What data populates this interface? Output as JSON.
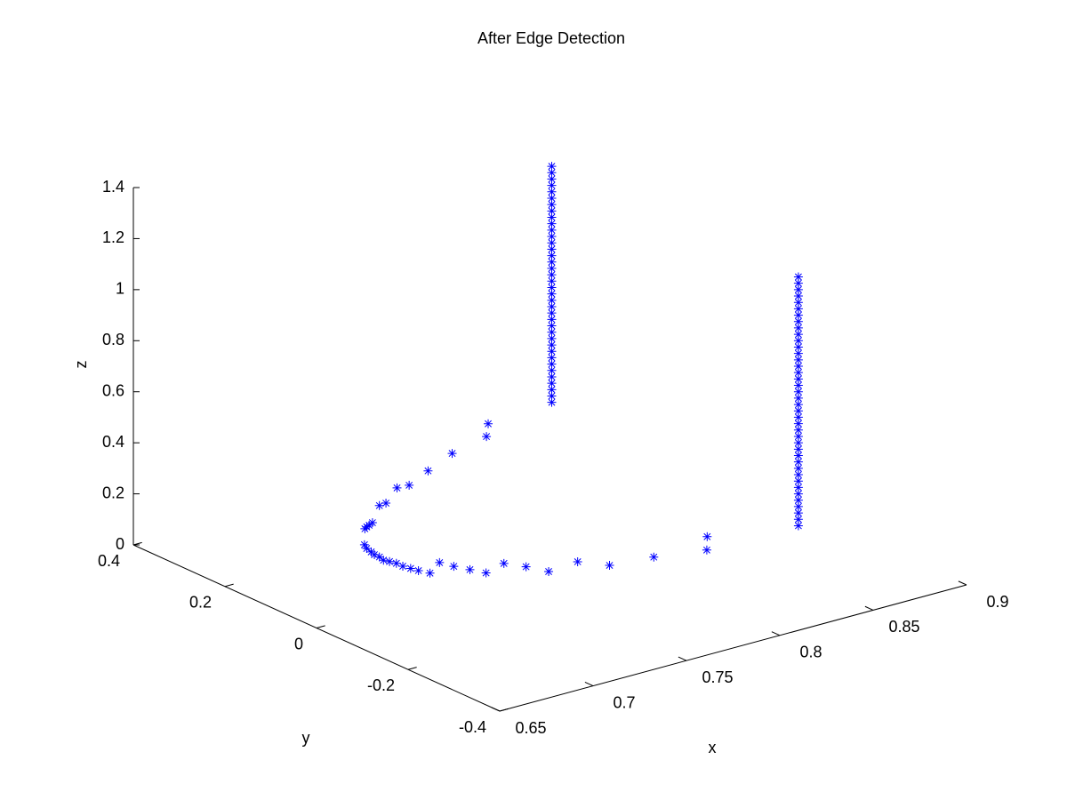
{
  "chart_data": {
    "type": "scatter3d",
    "title": "After Edge Detection",
    "xlabel": "x",
    "ylabel": "y",
    "zlabel": "z",
    "xlim": [
      0.65,
      0.9
    ],
    "ylim": [
      -0.4,
      0.4
    ],
    "zlim": [
      0,
      1.4
    ],
    "xticks": [
      0.65,
      0.7,
      0.75,
      0.8,
      0.85,
      0.9
    ],
    "yticks": [
      -0.4,
      -0.2,
      0,
      0.2,
      0.4
    ],
    "zticks": [
      0,
      0.2,
      0.4,
      0.6,
      0.8,
      1,
      1.2,
      1.4
    ],
    "marker": "asterisk",
    "series": [
      {
        "color": "#0000ff",
        "x": [
          0.802,
          0.792,
          0.768,
          0.747,
          0.73,
          0.724,
          0.709,
          0.705,
          0.69,
          0.687,
          0.685,
          0.683,
          0.671,
          0.669,
          0.668,
          0.667,
          0.667,
          0.666,
          0.667,
          0.668,
          0.668,
          0.669,
          0.67,
          0.672,
          0.683,
          0.685,
          0.688,
          0.691,
          0.704,
          0.709,
          0.713,
          0.73,
          0.738,
          0.759,
          0.792,
          0.782
        ],
        "y": [
          0.245,
          0.208,
          0.185,
          0.152,
          0.124,
          0.126,
          0.089,
          0.087,
          0.041,
          0.036,
          0.033,
          0.029,
          -0.019,
          -0.032,
          -0.046,
          -0.057,
          -0.068,
          -0.081,
          -0.09,
          -0.101,
          -0.115,
          -0.128,
          -0.141,
          -0.158,
          -0.134,
          -0.157,
          -0.18,
          -0.203,
          -0.189,
          -0.217,
          -0.25,
          -0.244,
          -0.281,
          -0.292,
          -0.274,
          -0.314
        ],
        "z": [
          0.3,
          0.3,
          0.3,
          0.3,
          0.3,
          0.3,
          0.3,
          0.3,
          0.3,
          0.3,
          0.3,
          0.3,
          0.3,
          0.3,
          0.3,
          0.3,
          0.3,
          0.3,
          0.3,
          0.3,
          0.3,
          0.3,
          0.3,
          0.3,
          0.3,
          0.3,
          0.3,
          0.3,
          0.3,
          0.3,
          0.3,
          0.3,
          0.3,
          0.3,
          0.3,
          0.3
        ]
      },
      {
        "color": "#0000ff",
        "x": [
          0.825,
          0.825,
          0.825,
          0.825,
          0.825,
          0.825,
          0.825,
          0.825,
          0.825,
          0.825,
          0.825,
          0.825,
          0.825,
          0.825,
          0.825,
          0.825,
          0.825,
          0.825,
          0.825,
          0.825,
          0.825,
          0.825,
          0.825,
          0.825,
          0.825,
          0.825,
          0.825,
          0.825,
          0.825,
          0.825,
          0.825,
          0.825,
          0.825,
          0.825,
          0.825,
          0.825,
          0.825,
          0.825
        ],
        "y": [
          0.2,
          0.2,
          0.2,
          0.2,
          0.2,
          0.2,
          0.2,
          0.2,
          0.2,
          0.2,
          0.2,
          0.2,
          0.2,
          0.2,
          0.2,
          0.2,
          0.2,
          0.2,
          0.2,
          0.2,
          0.2,
          0.2,
          0.2,
          0.2,
          0.2,
          0.2,
          0.2,
          0.2,
          0.2,
          0.2,
          0.2,
          0.2,
          0.2,
          0.2,
          0.2,
          0.2,
          0.2,
          0.2
        ],
        "z": [
          0.375,
          0.4,
          0.425,
          0.45,
          0.475,
          0.5,
          0.525,
          0.55,
          0.575,
          0.6,
          0.625,
          0.65,
          0.675,
          0.7,
          0.725,
          0.75,
          0.775,
          0.8,
          0.825,
          0.85,
          0.875,
          0.9,
          0.925,
          0.95,
          0.975,
          1,
          1.025,
          1.05,
          1.075,
          1.1,
          1.125,
          1.15,
          1.175,
          1.2,
          1.225,
          1.25,
          1.275,
          1.3
        ]
      },
      {
        "color": "#0000ff",
        "x": [
          0.859,
          0.859,
          0.859,
          0.859,
          0.859,
          0.859,
          0.859,
          0.859,
          0.859,
          0.859,
          0.859,
          0.859,
          0.859,
          0.859,
          0.859,
          0.859,
          0.859,
          0.859,
          0.859,
          0.859,
          0.859,
          0.859,
          0.859,
          0.859,
          0.859,
          0.859,
          0.859,
          0.859,
          0.859,
          0.859,
          0.859,
          0.859,
          0.859,
          0.859,
          0.859,
          0.859,
          0.859,
          0.859,
          0.859,
          0.859
        ],
        "y": [
          -0.2,
          -0.2,
          -0.2,
          -0.2,
          -0.2,
          -0.2,
          -0.2,
          -0.2,
          -0.2,
          -0.2,
          -0.2,
          -0.2,
          -0.2,
          -0.2,
          -0.2,
          -0.2,
          -0.2,
          -0.2,
          -0.2,
          -0.2,
          -0.2,
          -0.2,
          -0.2,
          -0.2,
          -0.2,
          -0.2,
          -0.2,
          -0.2,
          -0.2,
          -0.2,
          -0.2,
          -0.2,
          -0.2,
          -0.2,
          -0.2,
          -0.2,
          -0.2,
          -0.2,
          -0.2,
          -0.2
        ],
        "z": [
          0.15,
          0.175,
          0.2,
          0.225,
          0.25,
          0.275,
          0.3,
          0.325,
          0.35,
          0.375,
          0.4,
          0.425,
          0.45,
          0.475,
          0.5,
          0.525,
          0.55,
          0.575,
          0.6,
          0.625,
          0.65,
          0.675,
          0.7,
          0.725,
          0.75,
          0.775,
          0.8,
          0.825,
          0.85,
          0.875,
          0.9,
          0.925,
          0.95,
          0.975,
          1,
          1.025,
          1.05,
          1.075,
          1.1,
          1.125
        ]
      }
    ]
  }
}
